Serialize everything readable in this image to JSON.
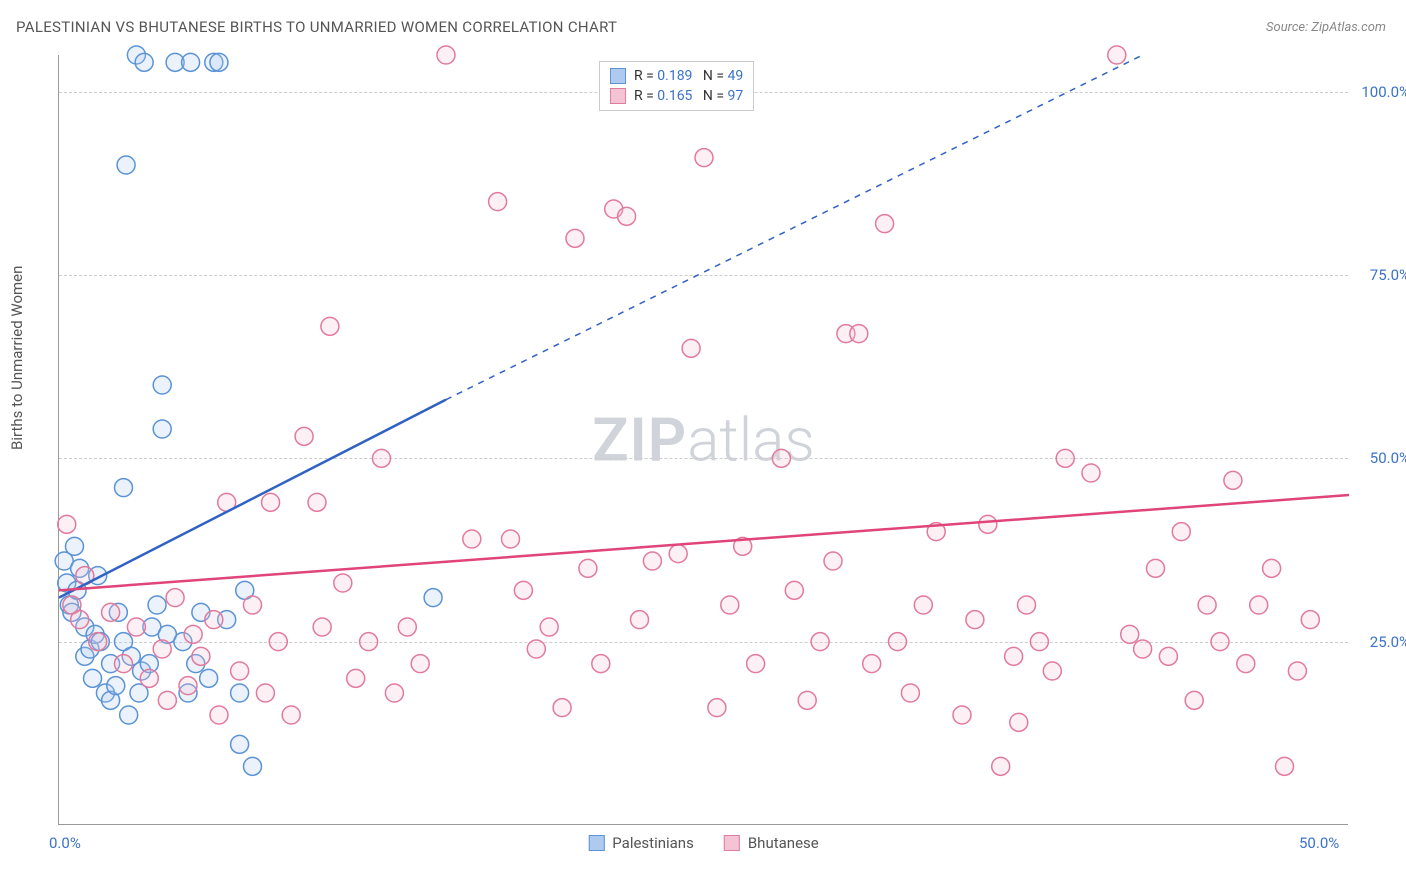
{
  "title": "PALESTINIAN VS BHUTANESE BIRTHS TO UNMARRIED WOMEN CORRELATION CHART",
  "source": "Source: ZipAtlas.com",
  "y_axis_label": "Births to Unmarried Women",
  "watermark_bold": "ZIP",
  "watermark_rest": "atlas",
  "chart": {
    "type": "scatter",
    "background_color": "#ffffff",
    "grid_color": "#cccccc",
    "grid_dash": "4,4",
    "axis_color": "#999999",
    "xlim": [
      0,
      50
    ],
    "ylim": [
      0,
      105
    ],
    "y_ticks": [
      {
        "value": 25,
        "label": "25.0%"
      },
      {
        "value": 50,
        "label": "50.0%"
      },
      {
        "value": 75,
        "label": "75.0%"
      },
      {
        "value": 100,
        "label": "100.0%"
      }
    ],
    "x_ticks": [
      {
        "value": 0,
        "label": "0.0%"
      },
      {
        "value": 50,
        "label": "50.0%"
      }
    ],
    "y_tick_color": "#3b72c9",
    "x_tick_color": "#3b72c9",
    "marker_radius": 9,
    "marker_stroke_width": 1.5,
    "marker_fill_opacity": 0.25,
    "series": [
      {
        "name": "Palestinians",
        "color_stroke": "#5a93d6",
        "color_fill": "#aecbef",
        "r_value": "0.189",
        "n_value": "49",
        "regression": {
          "x1": 0,
          "y1": 31,
          "x2": 15,
          "y2": 58,
          "dash_x2": 42,
          "dash_y2": 105,
          "color": "#2f62c2",
          "width": 2.5
        },
        "points": [
          [
            0.2,
            36
          ],
          [
            0.3,
            33
          ],
          [
            0.4,
            30
          ],
          [
            0.5,
            29
          ],
          [
            0.6,
            38
          ],
          [
            0.7,
            32
          ],
          [
            0.8,
            35
          ],
          [
            1.0,
            27
          ],
          [
            1.0,
            23
          ],
          [
            1.2,
            24
          ],
          [
            1.3,
            20
          ],
          [
            1.4,
            26
          ],
          [
            1.5,
            34
          ],
          [
            1.6,
            25
          ],
          [
            1.8,
            18
          ],
          [
            2.0,
            17
          ],
          [
            2.0,
            22
          ],
          [
            2.2,
            19
          ],
          [
            2.3,
            29
          ],
          [
            2.5,
            46
          ],
          [
            2.5,
            25
          ],
          [
            2.6,
            90
          ],
          [
            2.7,
            15
          ],
          [
            2.8,
            23
          ],
          [
            3.0,
            105
          ],
          [
            3.1,
            18
          ],
          [
            3.2,
            21
          ],
          [
            3.3,
            104
          ],
          [
            3.5,
            22
          ],
          [
            3.6,
            27
          ],
          [
            3.8,
            30
          ],
          [
            4.0,
            60
          ],
          [
            4.0,
            54
          ],
          [
            4.2,
            26
          ],
          [
            4.5,
            104
          ],
          [
            4.8,
            25
          ],
          [
            5.0,
            18
          ],
          [
            5.1,
            104
          ],
          [
            5.3,
            22
          ],
          [
            5.5,
            29
          ],
          [
            5.8,
            20
          ],
          [
            6.0,
            104
          ],
          [
            6.5,
            28
          ],
          [
            7.0,
            18
          ],
          [
            7.0,
            11
          ],
          [
            7.2,
            32
          ],
          [
            7.5,
            8
          ],
          [
            14.5,
            31
          ],
          [
            6.2,
            104
          ]
        ]
      },
      {
        "name": "Bhutanese",
        "color_stroke": "#e27a9d",
        "color_fill": "#f5c4d4",
        "r_value": "0.165",
        "n_value": "97",
        "regression": {
          "x1": 0,
          "y1": 32,
          "x2": 50,
          "y2": 45,
          "color": "#e04479",
          "width": 2.5
        },
        "points": [
          [
            0.3,
            41
          ],
          [
            0.5,
            30
          ],
          [
            0.8,
            28
          ],
          [
            1.0,
            34
          ],
          [
            1.5,
            25
          ],
          [
            2.0,
            29
          ],
          [
            2.5,
            22
          ],
          [
            3.0,
            27
          ],
          [
            3.5,
            20
          ],
          [
            4.0,
            24
          ],
          [
            4.2,
            17
          ],
          [
            4.5,
            31
          ],
          [
            5.0,
            19
          ],
          [
            5.2,
            26
          ],
          [
            5.5,
            23
          ],
          [
            6.0,
            28
          ],
          [
            6.2,
            15
          ],
          [
            6.5,
            44
          ],
          [
            7.0,
            21
          ],
          [
            7.5,
            30
          ],
          [
            8.0,
            18
          ],
          [
            8.2,
            44
          ],
          [
            8.5,
            25
          ],
          [
            9.0,
            15
          ],
          [
            9.5,
            53
          ],
          [
            10.0,
            44
          ],
          [
            10.2,
            27
          ],
          [
            10.5,
            68
          ],
          [
            11.0,
            33
          ],
          [
            11.5,
            20
          ],
          [
            12.0,
            25
          ],
          [
            12.5,
            50
          ],
          [
            13.0,
            18
          ],
          [
            13.5,
            27
          ],
          [
            14.0,
            22
          ],
          [
            15.0,
            105
          ],
          [
            16.0,
            39
          ],
          [
            17.0,
            85
          ],
          [
            17.5,
            39
          ],
          [
            18.0,
            32
          ],
          [
            18.5,
            24
          ],
          [
            19.0,
            27
          ],
          [
            19.5,
            16
          ],
          [
            20.0,
            80
          ],
          [
            20.5,
            35
          ],
          [
            21.0,
            22
          ],
          [
            21.5,
            84
          ],
          [
            22.0,
            83
          ],
          [
            22.5,
            28
          ],
          [
            23.0,
            36
          ],
          [
            24.0,
            37
          ],
          [
            24.5,
            65
          ],
          [
            25.0,
            91
          ],
          [
            25.5,
            16
          ],
          [
            26.0,
            30
          ],
          [
            26.5,
            38
          ],
          [
            27.0,
            22
          ],
          [
            28.0,
            50
          ],
          [
            28.5,
            32
          ],
          [
            29.0,
            17
          ],
          [
            29.5,
            25
          ],
          [
            30.0,
            36
          ],
          [
            30.5,
            67
          ],
          [
            31.0,
            67
          ],
          [
            31.5,
            22
          ],
          [
            32.0,
            82
          ],
          [
            32.5,
            25
          ],
          [
            33.0,
            18
          ],
          [
            33.5,
            30
          ],
          [
            34.0,
            40
          ],
          [
            35.0,
            15
          ],
          [
            35.5,
            28
          ],
          [
            36.0,
            41
          ],
          [
            36.5,
            8
          ],
          [
            37.0,
            23
          ],
          [
            37.2,
            14
          ],
          [
            37.5,
            30
          ],
          [
            38.0,
            25
          ],
          [
            38.5,
            21
          ],
          [
            39.0,
            50
          ],
          [
            40.0,
            48
          ],
          [
            41.0,
            105
          ],
          [
            41.5,
            26
          ],
          [
            42.0,
            24
          ],
          [
            42.5,
            35
          ],
          [
            43.0,
            23
          ],
          [
            43.5,
            40
          ],
          [
            44.0,
            17
          ],
          [
            44.5,
            30
          ],
          [
            45.0,
            25
          ],
          [
            45.5,
            47
          ],
          [
            46.0,
            22
          ],
          [
            46.5,
            30
          ],
          [
            47.0,
            35
          ],
          [
            47.5,
            8
          ],
          [
            48.0,
            21
          ],
          [
            48.5,
            28
          ]
        ]
      }
    ]
  },
  "legend_bottom": [
    {
      "label": "Palestinians",
      "stroke": "#5a93d6",
      "fill": "#aecbef"
    },
    {
      "label": "Bhutanese",
      "stroke": "#e27a9d",
      "fill": "#f5c4d4"
    }
  ]
}
